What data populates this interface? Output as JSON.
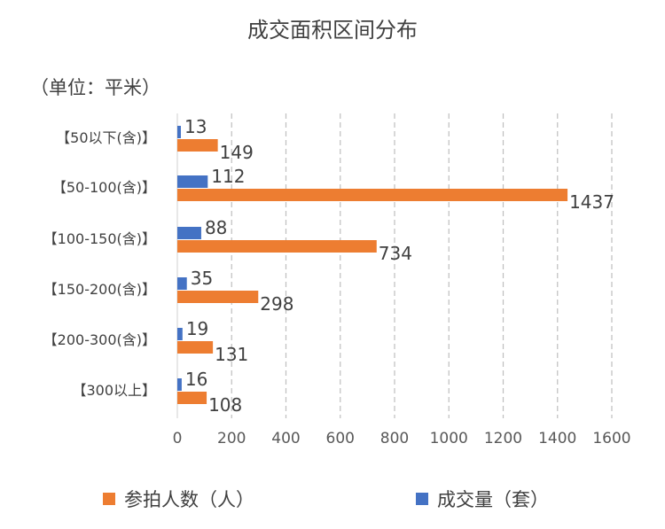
{
  "chart_data": {
    "type": "bar",
    "orientation": "horizontal",
    "title": "成交面积区间分布",
    "unit_label": "（单位：平米）",
    "categories": [
      "【50以下(含)】",
      "【50-100(含)】",
      "【100-150(含)】",
      "【150-200(含)】",
      "【200-300(含)】",
      "【300以上】"
    ],
    "series": [
      {
        "name": "参拍人数（人）",
        "color": "#ED7D31",
        "values": [
          149,
          1437,
          734,
          298,
          131,
          108
        ]
      },
      {
        "name": "成交量（套）",
        "color": "#4472C4",
        "values": [
          13,
          112,
          88,
          35,
          19,
          16
        ]
      }
    ],
    "xlim": [
      0,
      1600
    ],
    "xticks": [
      "0",
      "200",
      "400",
      "600",
      "800",
      "1000",
      "1200",
      "1400",
      "1600"
    ],
    "grid": true,
    "legend_position": "bottom"
  }
}
